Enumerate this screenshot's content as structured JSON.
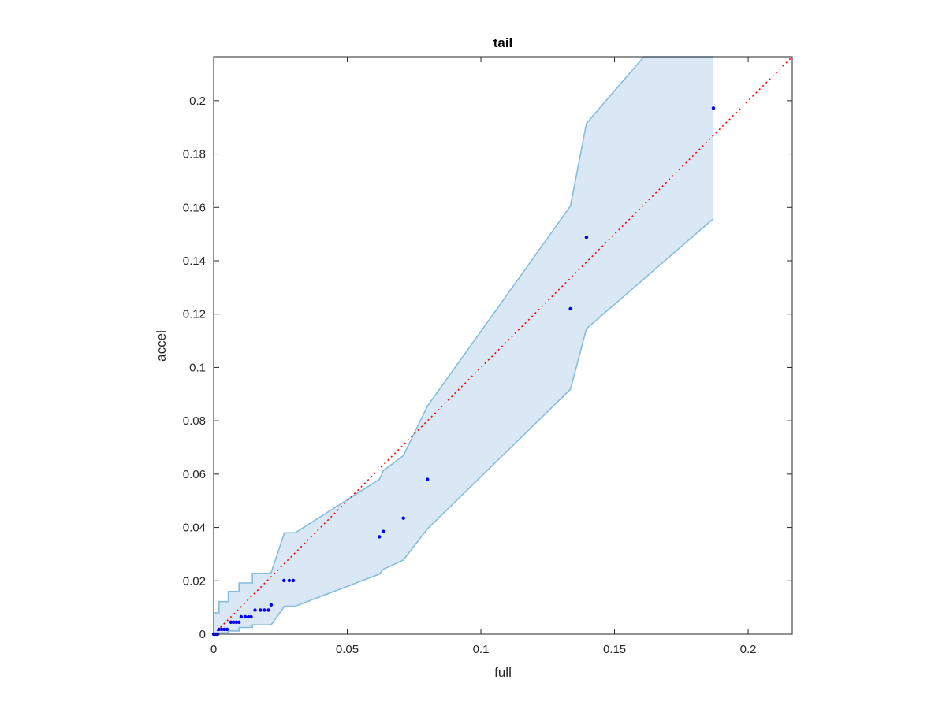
{
  "chart_data": {
    "type": "scatter",
    "title": "tail",
    "xlabel": "full",
    "ylabel": "accel",
    "xlim": [
      0,
      0.2165
    ],
    "ylim": [
      0,
      0.2165
    ],
    "xticks": [
      0,
      0.05,
      0.1,
      0.15,
      0.2
    ],
    "yticks": [
      0,
      0.02,
      0.04,
      0.06,
      0.08,
      0.1,
      0.12,
      0.14,
      0.16,
      0.18,
      0.2
    ],
    "xtick_labels": [
      "0",
      "0.05",
      "0.1",
      "0.15",
      "0.2"
    ],
    "ytick_labels": [
      "0",
      "0.02",
      "0.04",
      "0.06",
      "0.08",
      "0.1",
      "0.12",
      "0.14",
      "0.16",
      "0.18",
      "0.2"
    ],
    "grid": false,
    "colors": {
      "points": "#0000ff",
      "band_fill": "#d9e8f4",
      "band_edge": "#86bcdd",
      "diagonal": "#ff0000",
      "axes": "#262626"
    },
    "points": [
      {
        "x": 0.0,
        "y": 0.0
      },
      {
        "x": 0.0005,
        "y": 0.0
      },
      {
        "x": 0.001,
        "y": 0.0
      },
      {
        "x": 0.0015,
        "y": 0.0
      },
      {
        "x": 0.002,
        "y": 0.0018
      },
      {
        "x": 0.003,
        "y": 0.0018
      },
      {
        "x": 0.004,
        "y": 0.0018
      },
      {
        "x": 0.005,
        "y": 0.0018
      },
      {
        "x": 0.0065,
        "y": 0.0045
      },
      {
        "x": 0.0075,
        "y": 0.0045
      },
      {
        "x": 0.0085,
        "y": 0.0045
      },
      {
        "x": 0.0095,
        "y": 0.0045
      },
      {
        "x": 0.0103,
        "y": 0.0065
      },
      {
        "x": 0.0118,
        "y": 0.0065
      },
      {
        "x": 0.013,
        "y": 0.0065
      },
      {
        "x": 0.014,
        "y": 0.0065
      },
      {
        "x": 0.0155,
        "y": 0.009
      },
      {
        "x": 0.0175,
        "y": 0.009
      },
      {
        "x": 0.019,
        "y": 0.009
      },
      {
        "x": 0.0205,
        "y": 0.009
      },
      {
        "x": 0.0215,
        "y": 0.011
      },
      {
        "x": 0.0263,
        "y": 0.0201
      },
      {
        "x": 0.0283,
        "y": 0.0201
      },
      {
        "x": 0.0298,
        "y": 0.0201
      },
      {
        "x": 0.062,
        "y": 0.0365
      },
      {
        "x": 0.0635,
        "y": 0.0385
      },
      {
        "x": 0.071,
        "y": 0.0435
      },
      {
        "x": 0.08,
        "y": 0.058
      },
      {
        "x": 0.1335,
        "y": 0.122
      },
      {
        "x": 0.1395,
        "y": 0.1488
      },
      {
        "x": 0.187,
        "y": 0.1972
      }
    ],
    "band_upper": [
      [
        0.0,
        0.008
      ],
      [
        0.002,
        0.008
      ],
      [
        0.002,
        0.0122
      ],
      [
        0.0055,
        0.0122
      ],
      [
        0.0055,
        0.016
      ],
      [
        0.0095,
        0.016
      ],
      [
        0.0095,
        0.0192
      ],
      [
        0.0145,
        0.0192
      ],
      [
        0.0145,
        0.0228
      ],
      [
        0.0205,
        0.0228
      ],
      [
        0.0215,
        0.023
      ],
      [
        0.0265,
        0.038
      ],
      [
        0.0305,
        0.038
      ],
      [
        0.062,
        0.058
      ],
      [
        0.0635,
        0.0613
      ],
      [
        0.071,
        0.067
      ],
      [
        0.08,
        0.0855
      ],
      [
        0.1335,
        0.1605
      ],
      [
        0.1395,
        0.1915
      ],
      [
        0.161,
        0.2165
      ],
      [
        0.187,
        0.2165
      ]
    ],
    "band_lower": [
      [
        0.187,
        0.1558
      ],
      [
        0.1395,
        0.1145
      ],
      [
        0.1335,
        0.0918
      ],
      [
        0.08,
        0.0395
      ],
      [
        0.071,
        0.0278
      ],
      [
        0.0635,
        0.0243
      ],
      [
        0.062,
        0.0225
      ],
      [
        0.0305,
        0.0105
      ],
      [
        0.0265,
        0.0105
      ],
      [
        0.0215,
        0.0035
      ],
      [
        0.0145,
        0.0035
      ],
      [
        0.0145,
        0.0025
      ],
      [
        0.0095,
        0.0025
      ],
      [
        0.0095,
        0.0012
      ],
      [
        0.0055,
        0.0012
      ],
      [
        0.0055,
        0.0005
      ],
      [
        0.002,
        0.0005
      ],
      [
        0.002,
        0.0
      ],
      [
        0.0,
        0.0
      ]
    ],
    "diagonal": [
      [
        0,
        0
      ],
      [
        0.2165,
        0.2165
      ]
    ]
  }
}
